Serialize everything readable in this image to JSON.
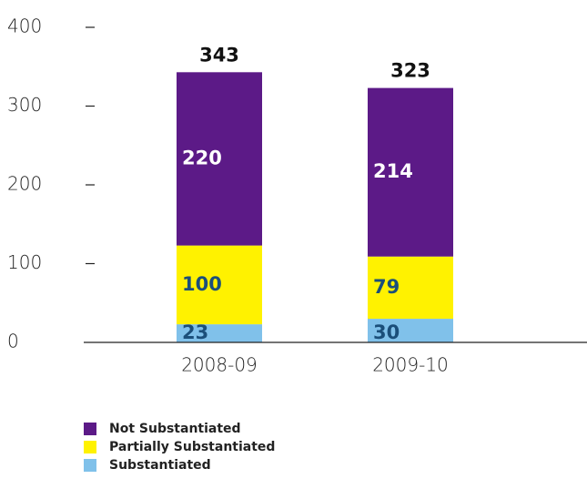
{
  "chart_data": {
    "type": "stacked_bar",
    "categories": [
      "2008-09",
      "2009-10"
    ],
    "series": [
      {
        "name": "Not Substantiated",
        "color": "#5c1a87",
        "label_color": "#ffffff",
        "values": [
          220,
          214
        ]
      },
      {
        "name": "Partially Substantiated",
        "color": "#fff200",
        "label_color": "#1b4f7a",
        "values": [
          100,
          79
        ]
      },
      {
        "name": "Substantiated",
        "color": "#80c1ea",
        "label_color": "#1b4f7a",
        "values": [
          23,
          30
        ]
      }
    ],
    "totals": [
      343,
      323
    ],
    "ylim": [
      0,
      400
    ],
    "yticks": [
      0,
      100,
      200,
      300,
      400
    ]
  }
}
